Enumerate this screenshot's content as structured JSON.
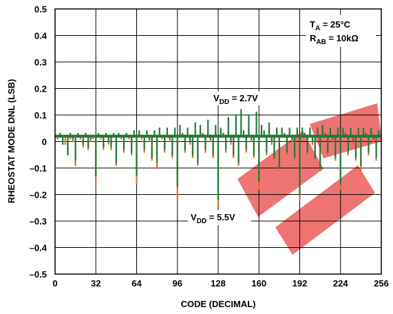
{
  "chart_data": {
    "type": "line",
    "title": "",
    "xlabel": "CODE (DECIMAL)",
    "ylabel": "RHEOSTAT MODE DNL (LSB)",
    "xlim": [
      0,
      256
    ],
    "ylim": [
      -0.5,
      0.5
    ],
    "grid": true,
    "x_ticks": [
      "0",
      "32",
      "64",
      "96",
      "128",
      "160",
      "192",
      "224",
      "256"
    ],
    "y_ticks": [
      "0.5",
      "0.4",
      "0.3",
      "0.2",
      "0.1",
      "0",
      "–0.1",
      "–0.2",
      "–0.3",
      "–0.4",
      "–0.5"
    ],
    "conditions": {
      "ta": {
        "main": "T",
        "sub": "A",
        "rest": " = 25°C"
      },
      "rab": {
        "main": "R",
        "sub": "AB",
        "rest": " = 10kΩ"
      }
    },
    "series": [
      {
        "name": "VDD = 5.5V",
        "label": {
          "main": "V",
          "sub": "DD",
          "rest": " = 5.5V"
        },
        "color": "#E8692A",
        "baseline": 0.02,
        "x": [
          2,
          4,
          6,
          8,
          10,
          12,
          14,
          16,
          18,
          20,
          22,
          24,
          26,
          28,
          30,
          32,
          34,
          36,
          38,
          40,
          42,
          44,
          46,
          48,
          50,
          52,
          54,
          56,
          58,
          60,
          62,
          64,
          66,
          68,
          70,
          72,
          74,
          76,
          78,
          80,
          82,
          84,
          86,
          88,
          90,
          92,
          94,
          96,
          98,
          100,
          102,
          104,
          106,
          108,
          110,
          112,
          114,
          116,
          118,
          120,
          122,
          124,
          126,
          128,
          130,
          132,
          134,
          136,
          138,
          140,
          142,
          144,
          146,
          148,
          150,
          152,
          154,
          156,
          158,
          160,
          162,
          164,
          166,
          168,
          170,
          172,
          174,
          176,
          178,
          180,
          182,
          184,
          186,
          188,
          190,
          192,
          194,
          196,
          198,
          200,
          202,
          204,
          206,
          208,
          210,
          212,
          214,
          216,
          218,
          220,
          222,
          224,
          226,
          228,
          230,
          232,
          234,
          236,
          238,
          240,
          242,
          244,
          246,
          248,
          250,
          252,
          254
        ],
        "y": [
          0.01,
          0.02,
          0.0,
          -0.01,
          -0.04,
          0.01,
          0.0,
          -0.09,
          0.02,
          0.01,
          -0.02,
          0.03,
          -0.03,
          0.0,
          0.01,
          -0.15,
          0.02,
          0.01,
          -0.03,
          0.02,
          -0.01,
          -0.03,
          0.02,
          -0.09,
          0.02,
          0.01,
          -0.04,
          0.02,
          0.01,
          -0.05,
          0.02,
          -0.16,
          0.02,
          0.01,
          -0.04,
          0.02,
          0.0,
          -0.07,
          0.02,
          -0.1,
          0.03,
          0.01,
          -0.04,
          0.03,
          0.0,
          -0.06,
          0.03,
          -0.21,
          0.03,
          0.02,
          -0.04,
          0.03,
          -0.01,
          -0.06,
          0.03,
          -0.09,
          0.04,
          0.02,
          -0.04,
          0.03,
          0.0,
          -0.06,
          0.03,
          -0.25,
          0.03,
          0.02,
          -0.04,
          0.04,
          -0.01,
          -0.06,
          0.04,
          -0.09,
          0.04,
          0.02,
          -0.04,
          0.04,
          0.0,
          -0.06,
          0.04,
          -0.18,
          0.04,
          0.02,
          -0.05,
          0.04,
          -0.01,
          -0.07,
          0.04,
          -0.11,
          0.04,
          0.02,
          -0.05,
          0.04,
          0.0,
          -0.07,
          0.04,
          -0.22,
          0.04,
          0.02,
          -0.05,
          0.04,
          -0.01,
          -0.07,
          0.04,
          -0.11,
          0.05,
          0.02,
          -0.05,
          0.04,
          0.0,
          -0.07,
          0.04,
          -0.18,
          0.04,
          0.02,
          -0.05,
          0.04,
          -0.01,
          -0.07,
          0.04,
          -0.11,
          0.04,
          0.02,
          -0.05,
          0.04,
          0.0,
          -0.07,
          0.03
        ]
      },
      {
        "name": "VDD = 2.7V",
        "label": {
          "main": "V",
          "sub": "DD",
          "rest": " = 2.7V"
        },
        "color": "#1E7A3A",
        "baseline": 0.02,
        "x": [
          2,
          4,
          6,
          8,
          10,
          12,
          14,
          16,
          18,
          20,
          22,
          24,
          26,
          28,
          30,
          32,
          34,
          36,
          38,
          40,
          42,
          44,
          46,
          48,
          50,
          52,
          54,
          56,
          58,
          60,
          62,
          64,
          66,
          68,
          70,
          72,
          74,
          76,
          78,
          80,
          82,
          84,
          86,
          88,
          90,
          92,
          94,
          96,
          98,
          100,
          102,
          104,
          106,
          108,
          110,
          112,
          114,
          116,
          118,
          120,
          122,
          124,
          126,
          128,
          130,
          132,
          134,
          136,
          138,
          140,
          142,
          144,
          146,
          148,
          150,
          152,
          154,
          156,
          158,
          160,
          162,
          164,
          166,
          168,
          170,
          172,
          174,
          176,
          178,
          180,
          182,
          184,
          186,
          188,
          190,
          192,
          194,
          196,
          198,
          200,
          202,
          204,
          206,
          208,
          210,
          212,
          214,
          216,
          218,
          220,
          222,
          224,
          226,
          228,
          230,
          232,
          234,
          236,
          238,
          240,
          242,
          244,
          246,
          248,
          250,
          252,
          254
        ],
        "y": [
          0.02,
          0.03,
          -0.01,
          0.02,
          -0.05,
          0.03,
          0.01,
          -0.07,
          0.03,
          0.02,
          -0.01,
          0.03,
          -0.02,
          0.01,
          0.02,
          -0.13,
          0.03,
          0.02,
          -0.02,
          0.03,
          0.0,
          -0.02,
          0.03,
          -0.08,
          0.03,
          0.02,
          -0.03,
          0.03,
          0.02,
          -0.04,
          0.04,
          -0.13,
          0.04,
          0.02,
          -0.03,
          0.04,
          0.01,
          -0.06,
          0.04,
          -0.08,
          0.05,
          0.02,
          -0.03,
          0.05,
          0.01,
          -0.05,
          0.05,
          -0.17,
          0.06,
          0.03,
          -0.03,
          0.05,
          0.0,
          -0.05,
          0.07,
          -0.08,
          0.06,
          0.03,
          -0.03,
          0.08,
          0.01,
          -0.05,
          0.06,
          -0.22,
          0.05,
          0.03,
          -0.03,
          0.09,
          0.0,
          -0.05,
          0.1,
          -0.08,
          0.12,
          0.04,
          -0.03,
          0.1,
          0.01,
          -0.05,
          0.11,
          -0.15,
          0.06,
          0.04,
          -0.04,
          0.07,
          0.0,
          -0.06,
          0.05,
          -0.1,
          0.05,
          0.03,
          -0.04,
          0.05,
          0.01,
          -0.06,
          0.05,
          -0.2,
          0.05,
          0.03,
          -0.04,
          0.05,
          0.0,
          -0.06,
          0.05,
          -0.1,
          0.06,
          0.03,
          -0.04,
          0.05,
          0.01,
          -0.06,
          0.05,
          -0.16,
          0.05,
          0.03,
          -0.04,
          0.05,
          0.0,
          -0.06,
          0.05,
          -0.09,
          0.05,
          0.03,
          -0.04,
          0.05,
          0.01,
          -0.06,
          0.04
        ]
      }
    ]
  }
}
